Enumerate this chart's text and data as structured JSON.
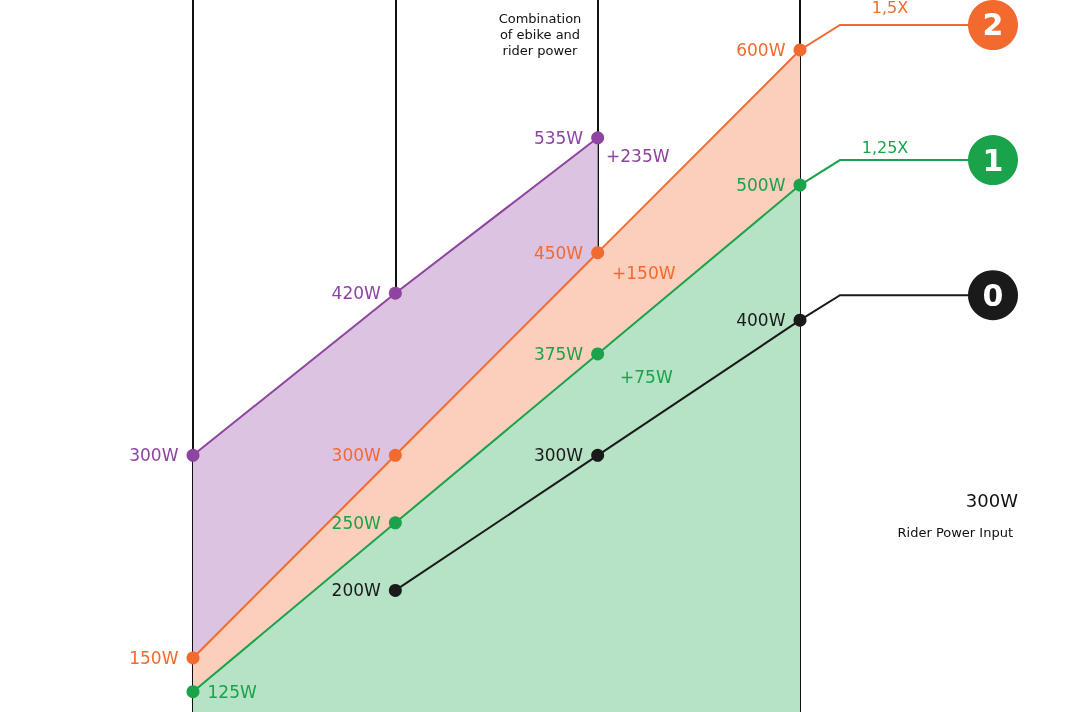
{
  "chart_data": {
    "type": "area",
    "categories": [
      null,
      null,
      null,
      null
    ],
    "series": [
      {
        "name": null,
        "color": "#8e44a0",
        "values": [
          300,
          420,
          535,
          null
        ],
        "value_labels": [
          "300W",
          "420W",
          "535W",
          null
        ]
      },
      {
        "name": "2",
        "color": "#f26a2e",
        "values": [
          150,
          300,
          450,
          600
        ],
        "value_labels": [
          "150W",
          "300W",
          "450W",
          "600W"
        ]
      },
      {
        "name": "1",
        "color": "#1aa34a",
        "values": [
          125,
          250,
          375,
          500
        ],
        "value_labels": [
          "125W",
          "250W",
          "375W",
          "500W"
        ]
      },
      {
        "name": "0",
        "type": "line",
        "color": "#1a1a1a",
        "values": [
          null,
          200,
          300,
          400
        ],
        "value_labels": [
          null,
          "200W",
          "300W",
          "400W"
        ]
      }
    ],
    "ylim": [
      110,
      637
    ],
    "tick_labels": false,
    "grid": "x",
    "legend": false,
    "marker": "circle",
    "annotations": [
      "Combination of ebike and rider power",
      "+235W",
      "+150W",
      "+75W",
      "300W",
      "Rider Power Input",
      "1,5X",
      "1,25X"
    ]
  }
}
